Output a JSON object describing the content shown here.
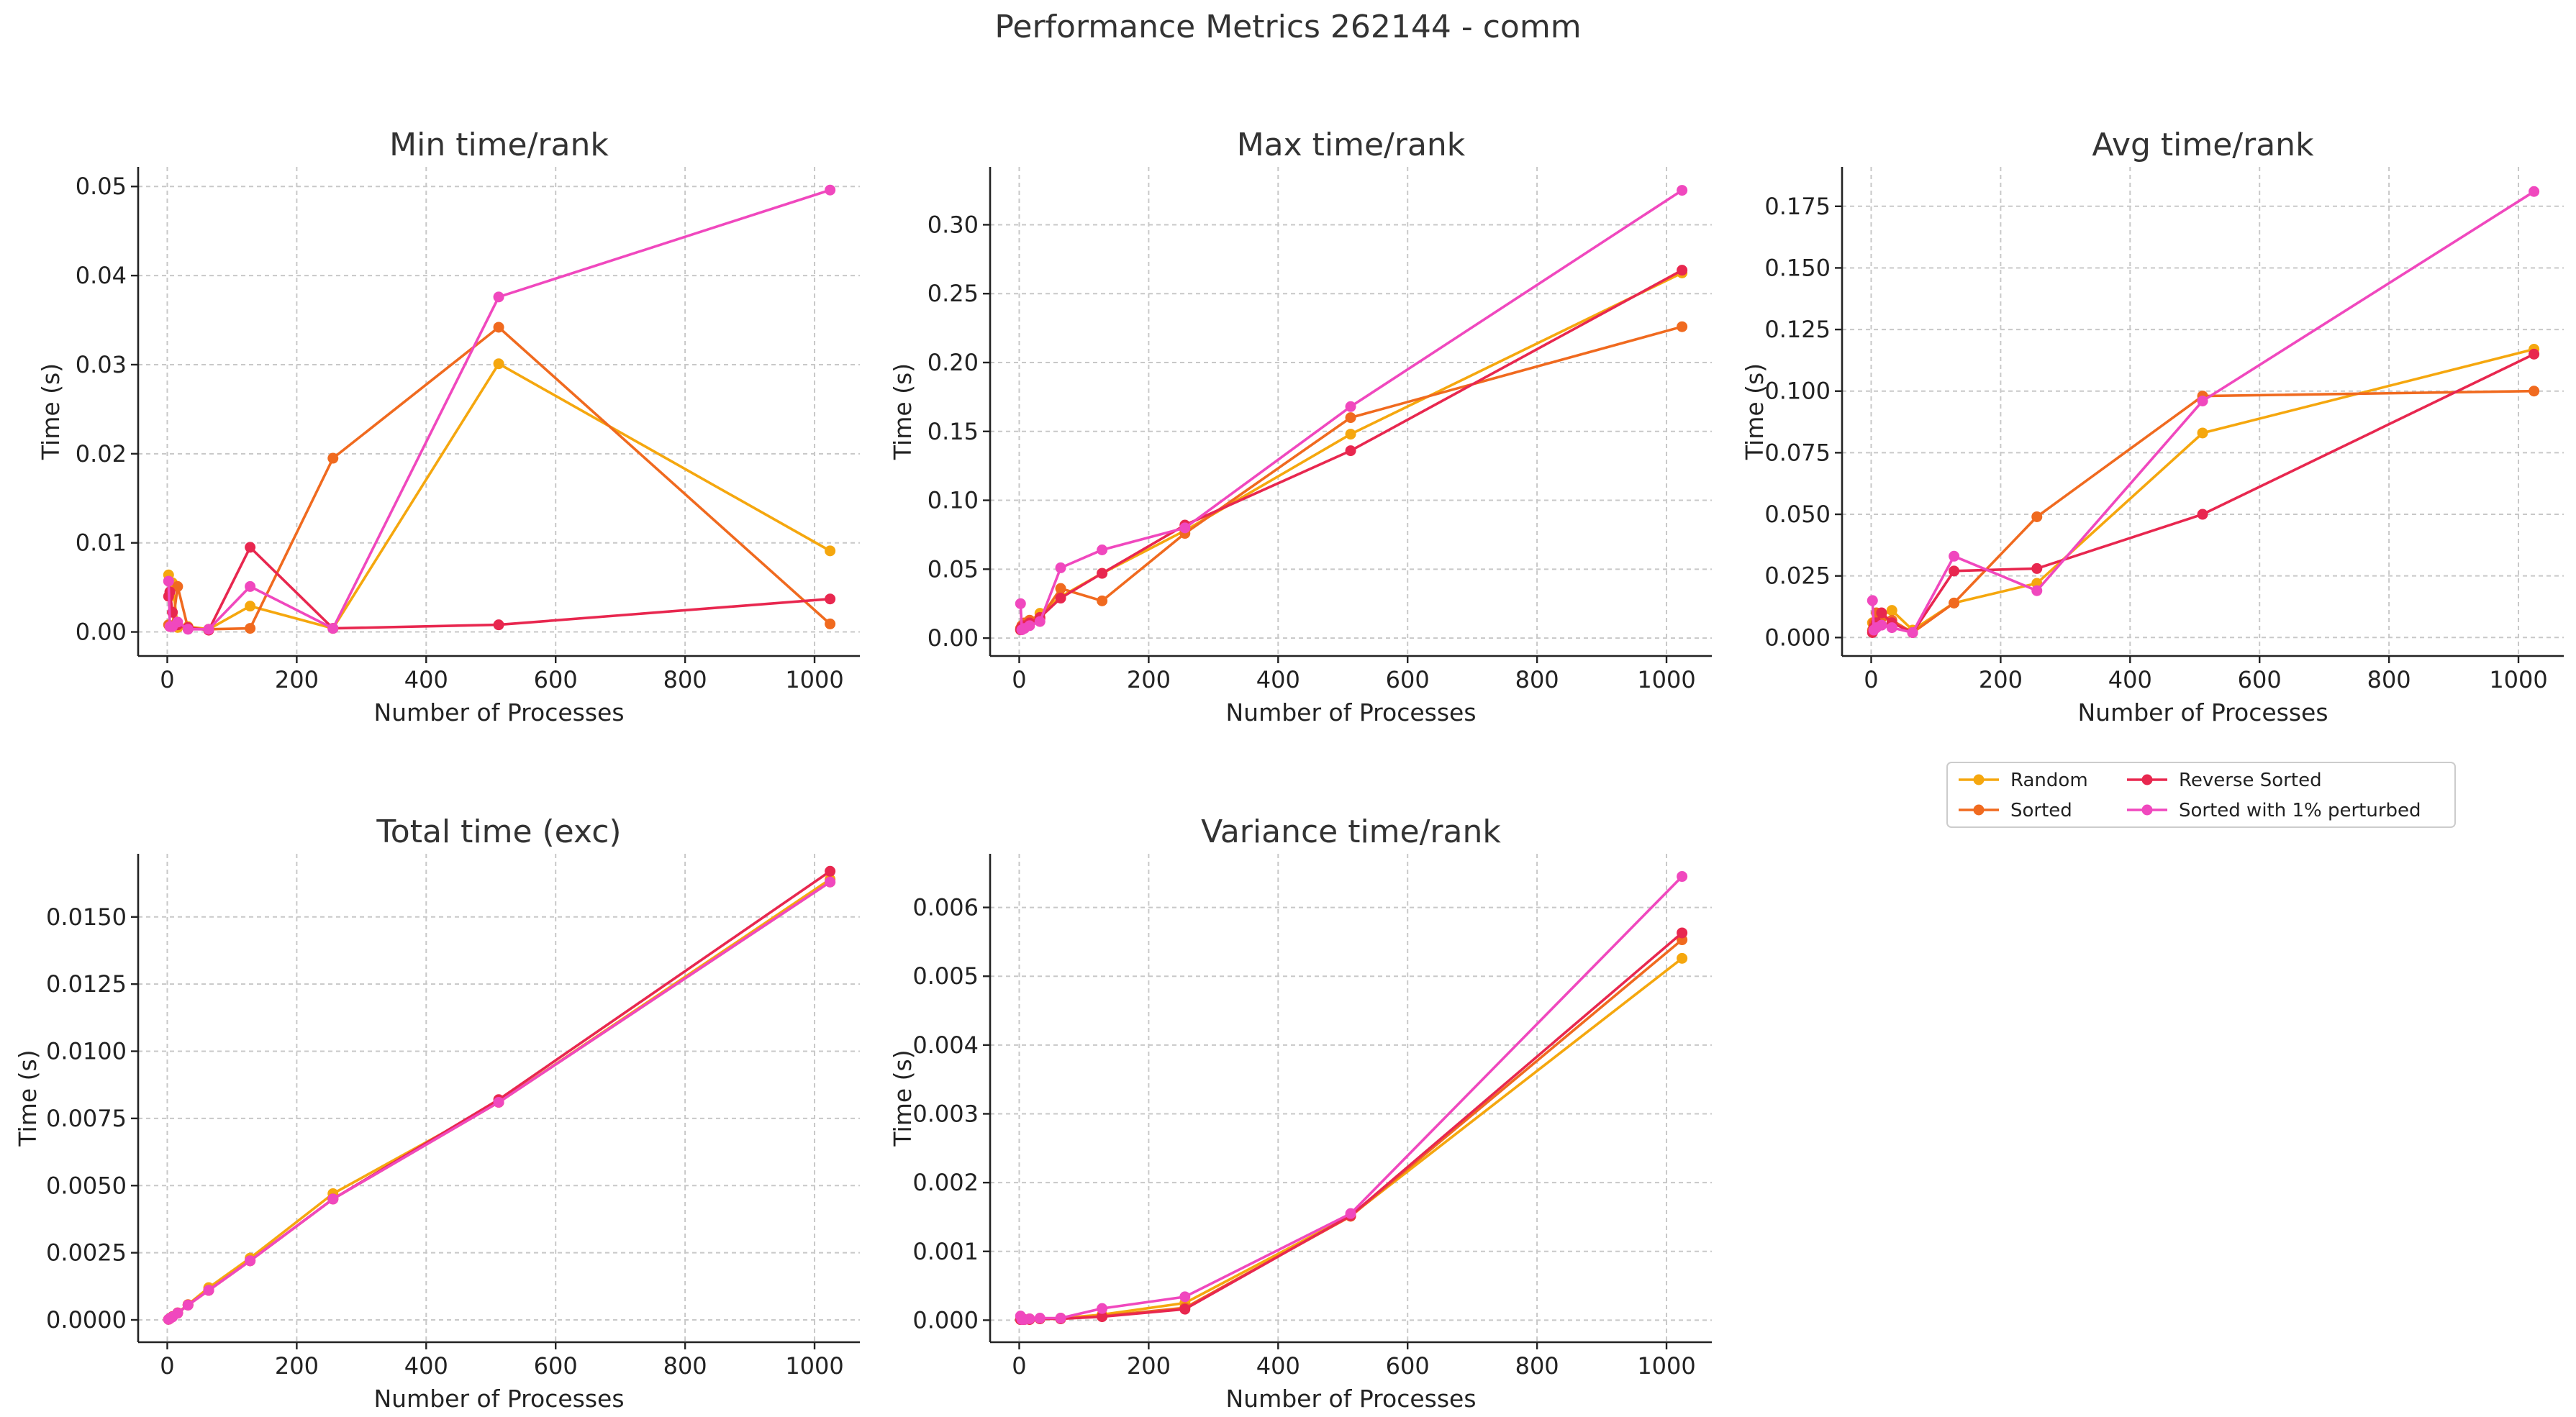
{
  "figure": {
    "title": "Performance Metrics 262144 - comm"
  },
  "legend": {
    "placement": "below-right-panel",
    "entries": [
      {
        "name": "Random",
        "color": "#F5A70E"
      },
      {
        "name": "Sorted",
        "color": "#F06A1F"
      },
      {
        "name": "Reverse Sorted",
        "color": "#E8274F"
      },
      {
        "name": "Sorted with 1% perturbed",
        "color": "#F048BE"
      }
    ]
  },
  "chart_data": [
    {
      "id": "min",
      "type": "line",
      "title": "Min time/rank",
      "xlabel": "Number of Processes",
      "ylabel": "Time (s)",
      "xlim": [
        -45,
        1070
      ],
      "ylim": [
        -0.0027,
        0.0522
      ],
      "xticks": [
        0,
        200,
        400,
        600,
        800,
        1000
      ],
      "yticks": [
        0.0,
        0.01,
        0.02,
        0.03,
        0.04,
        0.05
      ],
      "ytick_labels": [
        "0.00",
        "0.01",
        "0.02",
        "0.03",
        "0.04",
        "0.05"
      ],
      "grid": true,
      "x": [
        2,
        4,
        8,
        16,
        32,
        64,
        128,
        256,
        512,
        1024
      ],
      "series": [
        {
          "name": "Random",
          "values": [
            0.0064,
            0.004,
            0.0055,
            0.0005,
            0.0006,
            0.0003,
            0.0029,
            0.0004,
            0.0301,
            0.0091
          ]
        },
        {
          "name": "Sorted",
          "values": [
            0.0008,
            0.0006,
            0.0007,
            0.0051,
            0.0004,
            0.0003,
            0.0004,
            0.0195,
            0.0342,
            0.0009
          ]
        },
        {
          "name": "Reverse Sorted",
          "values": [
            0.004,
            0.0045,
            0.0022,
            0.0008,
            0.0005,
            0.0002,
            0.0095,
            0.0004,
            0.0008,
            0.0037
          ]
        },
        {
          "name": "Sorted with 1% perturbed",
          "values": [
            0.0057,
            0.0006,
            0.0006,
            0.0011,
            0.0003,
            0.0003,
            0.0051,
            0.0004,
            0.0376,
            0.0496
          ]
        }
      ]
    },
    {
      "id": "max",
      "type": "line",
      "title": "Max time/rank",
      "xlabel": "Number of Processes",
      "ylabel": "Time (s)",
      "xlim": [
        -45,
        1070
      ],
      "ylim": [
        -0.013,
        0.342
      ],
      "xticks": [
        0,
        200,
        400,
        600,
        800,
        1000
      ],
      "yticks": [
        0.0,
        0.05,
        0.1,
        0.15,
        0.2,
        0.25,
        0.3
      ],
      "ytick_labels": [
        "0.00",
        "0.05",
        "0.10",
        "0.15",
        "0.20",
        "0.25",
        "0.30"
      ],
      "grid": true,
      "x": [
        2,
        4,
        8,
        16,
        32,
        64,
        128,
        256,
        512,
        1024
      ],
      "series": [
        {
          "name": "Random",
          "values": [
            0.006,
            0.008,
            0.01,
            0.012,
            0.018,
            0.03,
            0.047,
            0.078,
            0.148,
            0.265
          ]
        },
        {
          "name": "Sorted",
          "values": [
            0.007,
            0.009,
            0.011,
            0.013,
            0.014,
            0.036,
            0.027,
            0.076,
            0.16,
            0.226
          ]
        },
        {
          "name": "Reverse Sorted",
          "values": [
            0.006,
            0.008,
            0.009,
            0.011,
            0.015,
            0.029,
            0.047,
            0.082,
            0.136,
            0.267
          ]
        },
        {
          "name": "Sorted with 1% perturbed",
          "values": [
            0.025,
            0.006,
            0.007,
            0.009,
            0.012,
            0.051,
            0.064,
            0.08,
            0.168,
            0.325
          ]
        }
      ]
    },
    {
      "id": "avg",
      "type": "line",
      "title": "Avg time/rank",
      "xlabel": "Number of Processes",
      "ylabel": "Time (s)",
      "xlim": [
        -45,
        1070
      ],
      "ylim": [
        -0.0075,
        0.191
      ],
      "xticks": [
        0,
        200,
        400,
        600,
        800,
        1000
      ],
      "yticks": [
        0.0,
        0.025,
        0.05,
        0.075,
        0.1,
        0.125,
        0.15,
        0.175
      ],
      "ytick_labels": [
        "0.000",
        "0.025",
        "0.050",
        "0.075",
        "0.100",
        "0.125",
        "0.150",
        "0.175"
      ],
      "grid": true,
      "x": [
        2,
        4,
        8,
        16,
        32,
        64,
        128,
        256,
        512,
        1024
      ],
      "series": [
        {
          "name": "Random",
          "values": [
            0.006,
            0.004,
            0.007,
            0.009,
            0.011,
            0.003,
            0.014,
            0.022,
            0.083,
            0.117
          ]
        },
        {
          "name": "Sorted",
          "values": [
            0.003,
            0.006,
            0.01,
            0.008,
            0.007,
            0.002,
            0.014,
            0.049,
            0.098,
            0.1
          ]
        },
        {
          "name": "Reverse Sorted",
          "values": [
            0.002,
            0.004,
            0.006,
            0.01,
            0.006,
            0.002,
            0.027,
            0.028,
            0.05,
            0.115
          ]
        },
        {
          "name": "Sorted with 1% perturbed",
          "values": [
            0.015,
            0.003,
            0.004,
            0.005,
            0.004,
            0.002,
            0.033,
            0.019,
            0.096,
            0.181
          ]
        }
      ]
    },
    {
      "id": "total",
      "type": "line",
      "title": "Total time (exc)",
      "xlabel": "Number of Processes",
      "ylabel": "Time (s)",
      "xlim": [
        -45,
        1070
      ],
      "ylim": [
        -0.00083,
        0.01735
      ],
      "xticks": [
        0,
        200,
        400,
        600,
        800,
        1000
      ],
      "yticks": [
        0.0,
        0.0025,
        0.005,
        0.0075,
        0.01,
        0.0125,
        0.015
      ],
      "ytick_labels": [
        "0.0000",
        "0.0025",
        "0.0050",
        "0.0075",
        "0.0100",
        "0.0125",
        "0.0150"
      ],
      "grid": true,
      "x": [
        2,
        4,
        8,
        16,
        32,
        64,
        128,
        256,
        512,
        1024
      ],
      "series": [
        {
          "name": "Random",
          "values": [
            2e-05,
            5e-05,
            0.00012,
            0.00026,
            0.00057,
            0.0012,
            0.0023,
            0.0047,
            0.0081,
            0.0164
          ]
        },
        {
          "name": "Sorted",
          "values": [
            2e-05,
            5e-05,
            0.00012,
            0.00025,
            0.00055,
            0.0011,
            0.0022,
            0.0045,
            0.0081,
            0.0163
          ]
        },
        {
          "name": "Reverse Sorted",
          "values": [
            2e-05,
            5e-05,
            0.00012,
            0.00026,
            0.00056,
            0.0011,
            0.0022,
            0.0045,
            0.0082,
            0.0167
          ]
        },
        {
          "name": "Sorted with 1% perturbed",
          "values": [
            2e-05,
            5e-05,
            0.00011,
            0.00025,
            0.00055,
            0.0011,
            0.0022,
            0.0045,
            0.0081,
            0.0163
          ]
        }
      ]
    },
    {
      "id": "variance",
      "type": "line",
      "title": "Variance time/rank",
      "xlabel": "Number of Processes",
      "ylabel": "Time (s)",
      "xlim": [
        -45,
        1070
      ],
      "ylim": [
        -0.00032,
        0.00678
      ],
      "xticks": [
        0,
        200,
        400,
        600,
        800,
        1000
      ],
      "yticks": [
        0.0,
        0.001,
        0.002,
        0.003,
        0.004,
        0.005,
        0.006
      ],
      "ytick_labels": [
        "0.000",
        "0.001",
        "0.002",
        "0.003",
        "0.004",
        "0.005",
        "0.006"
      ],
      "grid": true,
      "x": [
        2,
        4,
        8,
        16,
        32,
        64,
        128,
        256,
        512,
        1024
      ],
      "series": [
        {
          "name": "Random",
          "values": [
            1e-05,
            1e-05,
            1e-05,
            2e-05,
            2e-05,
            3e-05,
            8e-05,
            0.00025,
            0.00152,
            0.00526
          ]
        },
        {
          "name": "Sorted",
          "values": [
            1e-05,
            1e-05,
            1e-05,
            1e-05,
            2e-05,
            2e-05,
            6e-05,
            0.00018,
            0.00151,
            0.00553
          ]
        },
        {
          "name": "Reverse Sorted",
          "values": [
            1e-05,
            1e-05,
            1e-05,
            1e-05,
            2e-05,
            2e-05,
            5e-05,
            0.00016,
            0.00152,
            0.00563
          ]
        },
        {
          "name": "Sorted with 1% perturbed",
          "values": [
            6e-05,
            1e-05,
            1e-05,
            2e-05,
            3e-05,
            3e-05,
            0.00017,
            0.00034,
            0.00155,
            0.00645
          ]
        }
      ]
    }
  ]
}
